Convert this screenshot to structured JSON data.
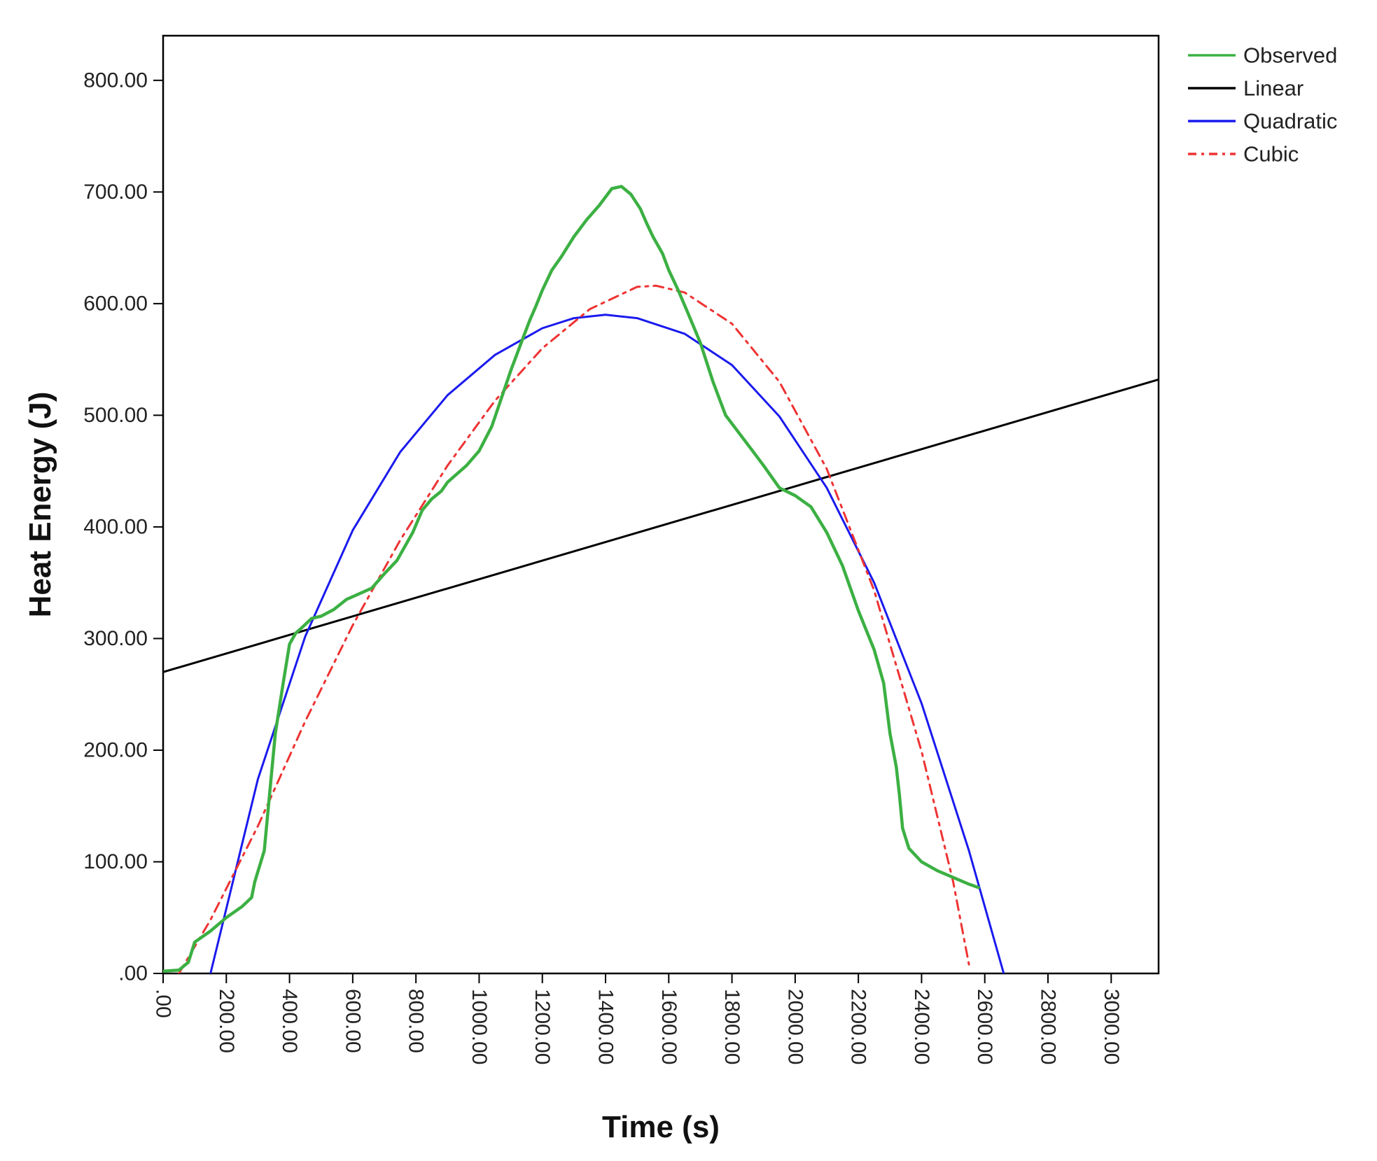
{
  "chart_data": {
    "type": "line",
    "title": "",
    "xlabel": "Time (s)",
    "ylabel": "Heat Energy (J)",
    "xlim": [
      0,
      3150
    ],
    "ylim": [
      0,
      840
    ],
    "xticks": [
      0,
      200,
      400,
      600,
      800,
      1000,
      1200,
      1400,
      1600,
      1800,
      2000,
      2200,
      2400,
      2600,
      2800,
      3000
    ],
    "xtick_labels": [
      ".00",
      "200.00",
      "400.00",
      "600.00",
      "800.00",
      "1000.00",
      "1200.00",
      "1400.00",
      "1600.00",
      "1800.00",
      "2000.00",
      "2200.00",
      "2400.00",
      "2600.00",
      "2800.00",
      "3000.00"
    ],
    "yticks": [
      0,
      100,
      200,
      300,
      400,
      500,
      600,
      700,
      800
    ],
    "ytick_labels": [
      ".00",
      "100.00",
      "200.00",
      "300.00",
      "400.00",
      "500.00",
      "600.00",
      "700.00",
      "800.00"
    ],
    "grid": false,
    "legend_position": "top-right, outside plot",
    "series": [
      {
        "name": "Observed",
        "color": "#3cb043",
        "style": "solid",
        "x": [
          0,
          50,
          80,
          100,
          150,
          200,
          250,
          280,
          290,
          320,
          340,
          355,
          380,
          400,
          420,
          440,
          470,
          500,
          540,
          580,
          620,
          660,
          700,
          740,
          790,
          820,
          850,
          880,
          900,
          920,
          960,
          1000,
          1040,
          1100,
          1140,
          1160,
          1180,
          1200,
          1230,
          1260,
          1300,
          1340,
          1380,
          1420,
          1450,
          1480,
          1510,
          1530,
          1550,
          1580,
          1600,
          1630,
          1660,
          1700,
          1740,
          1780,
          1820,
          1860,
          1900,
          1950,
          2000,
          2050,
          2100,
          2150,
          2200,
          2250,
          2280,
          2300,
          2320,
          2330,
          2340,
          2360,
          2400,
          2450,
          2500,
          2550,
          2580
        ],
        "y": [
          2,
          3,
          10,
          28,
          38,
          50,
          60,
          68,
          82,
          110,
          170,
          215,
          260,
          295,
          305,
          310,
          318,
          320,
          326,
          335,
          340,
          345,
          358,
          370,
          395,
          415,
          425,
          432,
          440,
          445,
          455,
          468,
          490,
          540,
          570,
          585,
          598,
          612,
          630,
          642,
          660,
          675,
          688,
          703,
          705,
          698,
          685,
          672,
          660,
          645,
          630,
          612,
          592,
          565,
          530,
          500,
          485,
          470,
          455,
          435,
          428,
          418,
          395,
          365,
          325,
          290,
          260,
          215,
          185,
          160,
          130,
          112,
          100,
          92,
          86,
          80,
          77
        ]
      },
      {
        "name": "Linear",
        "color": "#000000",
        "style": "solid",
        "x": [
          0,
          3150
        ],
        "y": [
          270,
          532
        ]
      },
      {
        "name": "Quadratic",
        "color": "#1a1aee",
        "style": "solid",
        "x": [
          150,
          300,
          450,
          600,
          750,
          900,
          1050,
          1200,
          1300,
          1400,
          1500,
          1650,
          1800,
          1950,
          2100,
          2250,
          2400,
          2550,
          2660
        ],
        "y": [
          0,
          174,
          302,
          397,
          467,
          518,
          554,
          578,
          587,
          590,
          587,
          573,
          545,
          499,
          435,
          350,
          242,
          110,
          0
        ]
      },
      {
        "name": "Cubic",
        "color": "#ee3333",
        "style": "dashed",
        "x": [
          50,
          150,
          300,
          450,
          600,
          750,
          900,
          1050,
          1200,
          1350,
          1500,
          1560,
          1650,
          1800,
          1950,
          2100,
          2250,
          2400,
          2500,
          2550
        ],
        "y": [
          0,
          48,
          132,
          226,
          312,
          388,
          455,
          513,
          560,
          595,
          615,
          616,
          610,
          582,
          530,
          452,
          343,
          199,
          82,
          8
        ]
      }
    ]
  }
}
